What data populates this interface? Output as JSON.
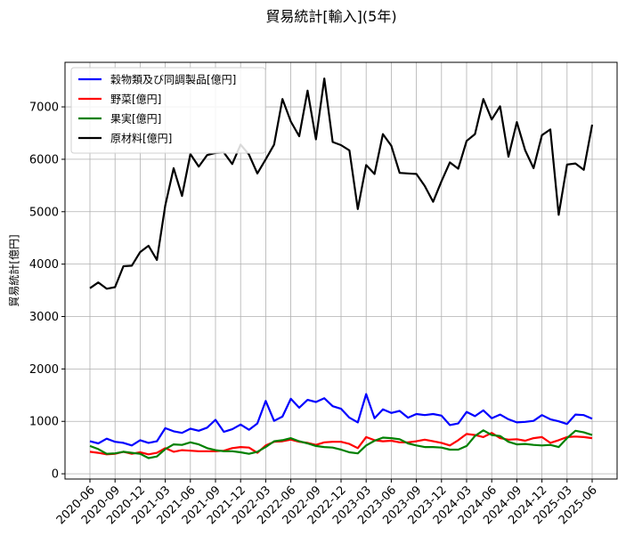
{
  "chart_data": {
    "type": "line",
    "title": "貿易統計[輸入](5年)",
    "xlabel": "",
    "ylabel": "貿易統計[億円]",
    "ylim": [
      -100,
      7850
    ],
    "yticks": [
      0,
      1000,
      2000,
      3000,
      4000,
      5000,
      6000,
      7000
    ],
    "xtick_labels": [
      "2020-06",
      "2020-09",
      "2020-12",
      "2021-03",
      "2021-06",
      "2021-09",
      "2021-12",
      "2022-03",
      "2022-06",
      "2022-09",
      "2022-12",
      "2023-03",
      "2023-06",
      "2023-09",
      "2023-12",
      "2024-03",
      "2024-06",
      "2024-09",
      "2024-12",
      "2025-03",
      "2025-06"
    ],
    "x": [
      "2020-06",
      "2020-07",
      "2020-08",
      "2020-09",
      "2020-10",
      "2020-11",
      "2020-12",
      "2021-01",
      "2021-02",
      "2021-03",
      "2021-04",
      "2021-05",
      "2021-06",
      "2021-07",
      "2021-08",
      "2021-09",
      "2021-10",
      "2021-11",
      "2021-12",
      "2022-01",
      "2022-02",
      "2022-03",
      "2022-04",
      "2022-05",
      "2022-06",
      "2022-07",
      "2022-08",
      "2022-09",
      "2022-10",
      "2022-11",
      "2022-12",
      "2023-01",
      "2023-02",
      "2023-03",
      "2023-04",
      "2023-05",
      "2023-06",
      "2023-07",
      "2023-08",
      "2023-09",
      "2023-10",
      "2023-11",
      "2023-12",
      "2024-01",
      "2024-02",
      "2024-03",
      "2024-04",
      "2024-05",
      "2024-06",
      "2024-07",
      "2024-08",
      "2024-09",
      "2024-10",
      "2024-11",
      "2024-12",
      "2025-01",
      "2025-02",
      "2025-03",
      "2025-04",
      "2025-05",
      "2025-06"
    ],
    "legend_position": "upper-left",
    "series": [
      {
        "name": "穀物類及び同調製品[億円]",
        "color": "#0000ff",
        "values": [
          620,
          580,
          670,
          610,
          590,
          540,
          640,
          590,
          620,
          870,
          810,
          780,
          860,
          820,
          880,
          1030,
          800,
          850,
          940,
          840,
          960,
          1390,
          1010,
          1090,
          1430,
          1260,
          1410,
          1370,
          1440,
          1290,
          1240,
          1070,
          980,
          1520,
          1060,
          1230,
          1160,
          1200,
          1070,
          1140,
          1120,
          1140,
          1110,
          930,
          960,
          1180,
          1100,
          1210,
          1060,
          1130,
          1040,
          980,
          990,
          1010,
          1120,
          1040,
          1000,
          950,
          1130,
          1120,
          1050
        ]
      },
      {
        "name": "野菜[億円]",
        "color": "#ff0000",
        "values": [
          420,
          400,
          370,
          380,
          420,
          380,
          410,
          370,
          400,
          490,
          420,
          450,
          440,
          430,
          430,
          430,
          440,
          490,
          510,
          500,
          400,
          540,
          610,
          620,
          650,
          610,
          590,
          550,
          600,
          610,
          610,
          570,
          490,
          700,
          640,
          620,
          630,
          600,
          600,
          620,
          650,
          620,
          590,
          540,
          640,
          760,
          740,
          700,
          780,
          680,
          650,
          660,
          630,
          680,
          700,
          590,
          640,
          700,
          710,
          700,
          680
        ]
      },
      {
        "name": "果実[億円]",
        "color": "#008000",
        "values": [
          530,
          470,
          380,
          390,
          420,
          400,
          380,
          300,
          330,
          470,
          560,
          550,
          600,
          560,
          490,
          450,
          430,
          430,
          410,
          380,
          420,
          510,
          620,
          640,
          680,
          620,
          580,
          530,
          510,
          500,
          460,
          410,
          390,
          540,
          630,
          690,
          680,
          660,
          580,
          540,
          510,
          510,
          500,
          460,
          460,
          530,
          720,
          830,
          740,
          720,
          610,
          560,
          570,
          550,
          540,
          550,
          510,
          680,
          820,
          790,
          740
        ]
      },
      {
        "name": "原材料[億円]",
        "color": "#000000",
        "values": [
          3540,
          3650,
          3530,
          3560,
          3960,
          3970,
          4230,
          4350,
          4080,
          5120,
          5830,
          5300,
          6100,
          5860,
          6080,
          6120,
          6130,
          5910,
          6280,
          6090,
          5730,
          6000,
          6280,
          7150,
          6720,
          6440,
          7310,
          6380,
          7540,
          6330,
          6270,
          6170,
          5050,
          5890,
          5720,
          6480,
          6260,
          5740,
          5730,
          5720,
          5490,
          5190,
          5580,
          5940,
          5820,
          6350,
          6480,
          7150,
          6760,
          7010,
          6050,
          6710,
          6170,
          5830,
          6460,
          6570,
          4940,
          5900,
          5920,
          5800,
          6660
        ]
      }
    ]
  }
}
